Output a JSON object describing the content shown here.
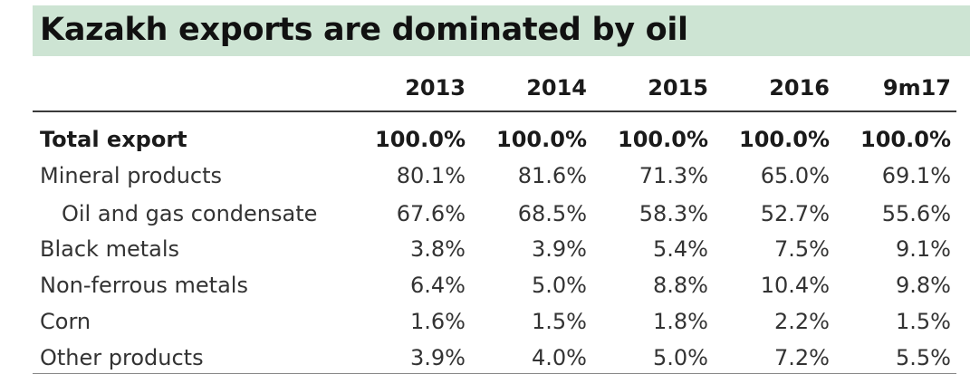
{
  "title": "Kazakh exports are dominated by oil",
  "colors": {
    "title_background": "#cde4d3",
    "text": "#1a1a1a"
  },
  "table": {
    "columns": [
      "2013",
      "2014",
      "2015",
      "2016",
      "9m17"
    ],
    "rows": [
      {
        "label": "Total export",
        "values": [
          "100.0%",
          "100.0%",
          "100.0%",
          "100.0%",
          "100.0%"
        ]
      },
      {
        "label": "Mineral products",
        "values": [
          "80.1%",
          "81.6%",
          "71.3%",
          "65.0%",
          "69.1%"
        ]
      },
      {
        "label": "Oil and gas condensate",
        "values": [
          "67.6%",
          "68.5%",
          "58.3%",
          "52.7%",
          "55.6%"
        ]
      },
      {
        "label": "Black metals",
        "values": [
          "3.8%",
          "3.9%",
          "5.4%",
          "7.5%",
          "9.1%"
        ]
      },
      {
        "label": "Non-ferrous metals",
        "values": [
          "6.4%",
          "5.0%",
          "8.8%",
          "10.4%",
          "9.8%"
        ]
      },
      {
        "label": "Corn",
        "values": [
          "1.6%",
          "1.5%",
          "1.8%",
          "2.2%",
          "1.5%"
        ]
      },
      {
        "label": "Other products",
        "values": [
          "3.9%",
          "4.0%",
          "5.0%",
          "7.2%",
          "5.5%"
        ]
      }
    ]
  }
}
